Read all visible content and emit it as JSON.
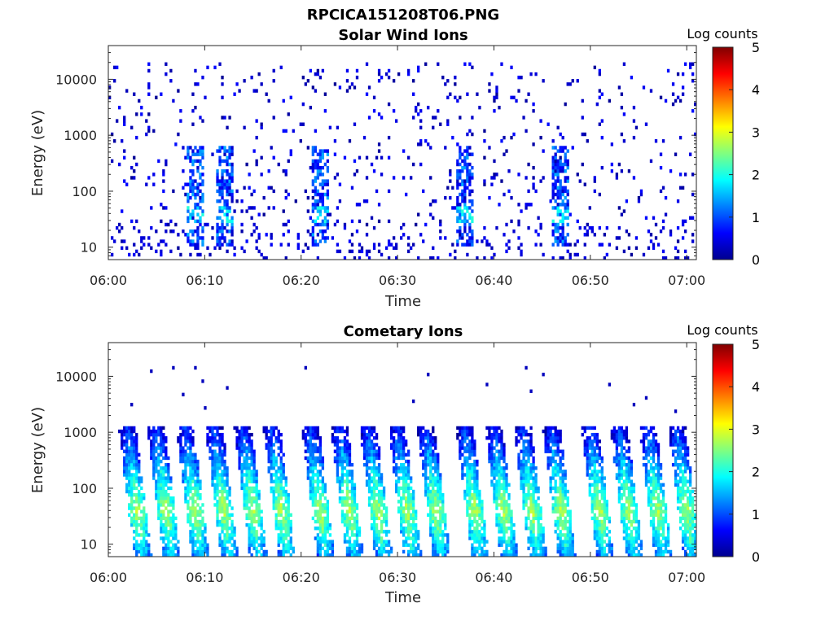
{
  "figure": {
    "title": "RPCICA151208T06.PNG"
  },
  "chart_data": [
    {
      "type": "heatmap",
      "title": "Solar Wind Ions",
      "xlabel": "Time",
      "ylabel": "Energy (eV)",
      "xticks": [
        "06:00",
        "06:10",
        "06:20",
        "06:30",
        "06:40",
        "06:50",
        "07:00"
      ],
      "xlim": [
        "06:00",
        "07:01"
      ],
      "yscale": "log",
      "yticks": [
        10,
        100,
        1000,
        10000
      ],
      "yticklabels": [
        "10",
        "100",
        "1000",
        "10000"
      ],
      "ylim": [
        6,
        40000
      ],
      "colorbar": {
        "label": "Log counts",
        "ticks": [
          "0",
          "1",
          "2",
          "3",
          "4",
          "5"
        ],
        "range": [
          0,
          5
        ],
        "colormap": "jet"
      },
      "grid": false,
      "pattern": "sparse scattered counts across all energies (log counts ~0-1), with denser columns near 10-500 eV around 06:09, 06:12, 06:22, 06:37, 06:47 reaching ~1.5-2"
    },
    {
      "type": "heatmap",
      "title": "Cometary Ions",
      "xlabel": "Time",
      "ylabel": "Energy (eV)",
      "xticks": [
        "06:00",
        "06:10",
        "06:20",
        "06:30",
        "06:40",
        "06:50",
        "07:00"
      ],
      "xlim": [
        "06:00",
        "07:01"
      ],
      "yscale": "log",
      "yticks": [
        10,
        100,
        1000,
        10000
      ],
      "yticklabels": [
        "10",
        "100",
        "1000",
        "10000"
      ],
      "ylim": [
        6,
        40000
      ],
      "colorbar": {
        "label": "Log counts",
        "ticks": [
          "0",
          "1",
          "2",
          "3",
          "4",
          "5"
        ],
        "range": [
          0,
          5
        ],
        "colormap": "jet"
      },
      "grid": false,
      "burst_times": [
        "06:03",
        "06:06",
        "06:09",
        "06:12",
        "06:15",
        "06:18",
        "06:22",
        "06:25",
        "06:28",
        "06:31",
        "06:34",
        "06:38",
        "06:41",
        "06:44",
        "06:47",
        "06:51",
        "06:54",
        "06:57",
        "07:00"
      ],
      "pattern": "periodic dispersed bursts ~every 3 min spanning ~10-1000 eV, peak log counts ~2.5-3 near 40 eV"
    }
  ]
}
